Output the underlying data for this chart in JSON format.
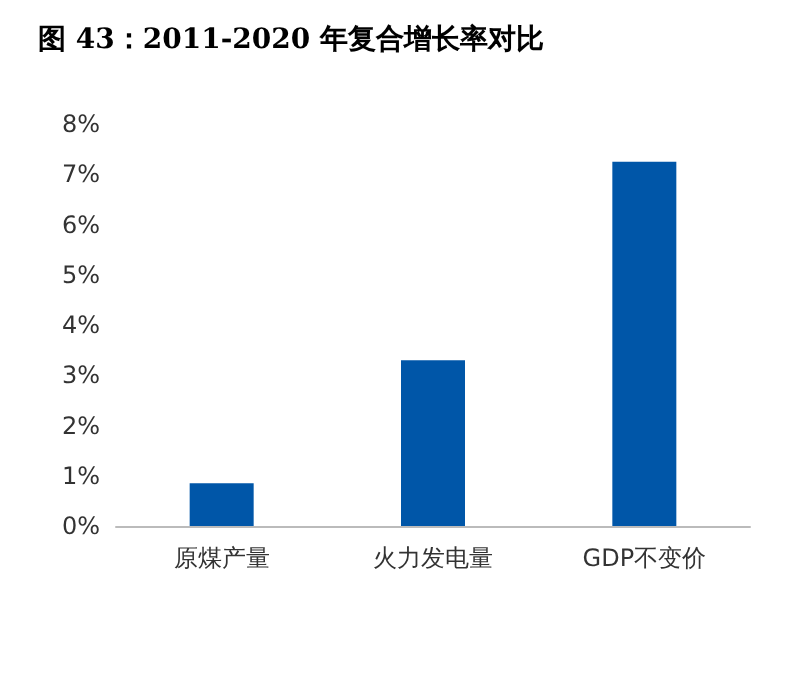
{
  "chart_data": {
    "type": "bar",
    "title": "图 43：2011-2020 年复合增长率对比",
    "categories": [
      "原煤产量",
      "火力发电量",
      "GDP不变价"
    ],
    "values": [
      0.85,
      3.3,
      7.25
    ],
    "color": "#0056a8",
    "ylim": [
      0,
      8
    ],
    "yticks": [
      {
        "value": 0,
        "label": "0%"
      },
      {
        "value": 1,
        "label": "1%"
      },
      {
        "value": 2,
        "label": "2%"
      },
      {
        "value": 3,
        "label": "3%"
      },
      {
        "value": 4,
        "label": "4%"
      },
      {
        "value": 5,
        "label": "5%"
      },
      {
        "value": 6,
        "label": "6%"
      },
      {
        "value": 7,
        "label": "7%"
      },
      {
        "value": 8,
        "label": "8%"
      }
    ],
    "grid": false
  }
}
